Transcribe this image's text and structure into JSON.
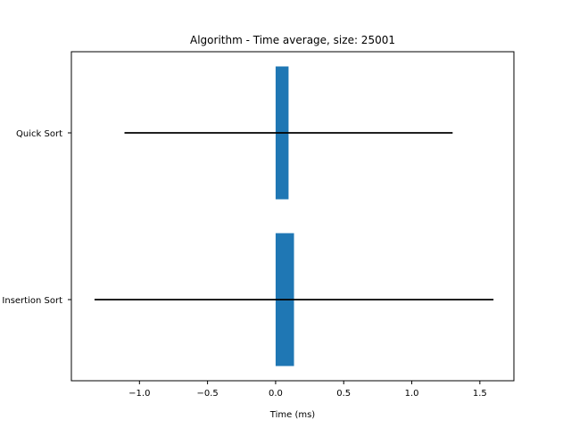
{
  "chart_data": {
    "type": "bar",
    "orientation": "horizontal",
    "title": "Algorithm - Time average, size: 25001",
    "xlabel": "Time (ms)",
    "ylabel": "",
    "categories": [
      "Insertion Sort",
      "Quick Sort"
    ],
    "series": [
      {
        "values": [
          0.135,
          0.095
        ],
        "error_low": [
          -1.33,
          -1.11
        ],
        "error_high": [
          1.6,
          1.3
        ],
        "color": "#1f77b4"
      }
    ],
    "xlim": [
      -1.5,
      1.75
    ],
    "xticks": [
      -1.0,
      -0.5,
      0.0,
      0.5,
      1.0,
      1.5
    ],
    "xtick_labels": [
      "−1.0",
      "−0.5",
      "0.0",
      "0.5",
      "1.0",
      "1.5"
    ],
    "error_bar_color": "#000000",
    "grid": false
  }
}
